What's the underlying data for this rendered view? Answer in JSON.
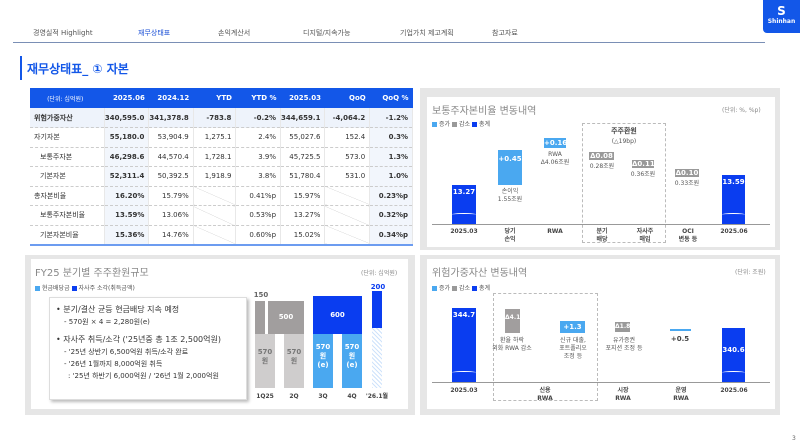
{
  "nav": [
    "경영실적 Highlight",
    "재무상태표",
    "손익계산서",
    "디지털/지속가능",
    "기업가치 제고계획",
    "참고자료"
  ],
  "logo_text": "Shinhan",
  "page_title": "재무상태표_ ① 자본",
  "table": {
    "unit": "(단위: 십억원)",
    "headers": [
      "2025.06",
      "2024.12",
      "YTD",
      "YTD %",
      "2025.03",
      "QoQ",
      "QoQ %"
    ],
    "rows": [
      {
        "label": "위험가중자산",
        "values": [
          "340,595.0",
          "341,378.8",
          "-783.8",
          "-0.2%",
          "344,659.1",
          "-4,064.2",
          "-1.2%"
        ]
      },
      {
        "label": "자기자본",
        "values": [
          "55,180.0",
          "53,904.9",
          "1,275.1",
          "2.4%",
          "55,027.6",
          "152.4",
          "0.3%"
        ]
      },
      {
        "label": "보통주자본",
        "values": [
          "46,298.6",
          "44,570.4",
          "1,728.1",
          "3.9%",
          "45,725.5",
          "573.0",
          "1.3%"
        ]
      },
      {
        "label": "기본자본",
        "values": [
          "52,311.4",
          "50,392.5",
          "1,918.9",
          "3.8%",
          "51,780.4",
          "531.0",
          "1.0%"
        ]
      },
      {
        "label": "총자본비율",
        "values": [
          "16.20%",
          "15.79%",
          "",
          "0.41%p",
          "15.97%",
          "",
          "0.23%p"
        ]
      },
      {
        "label": "보통주자본비율",
        "values": [
          "13.59%",
          "13.06%",
          "",
          "0.53%p",
          "13.27%",
          "",
          "0.32%p"
        ]
      },
      {
        "label": "기본자본비율",
        "values": [
          "15.36%",
          "14.76%",
          "",
          "0.60%p",
          "15.02%",
          "",
          "0.34%p"
        ]
      }
    ]
  },
  "cet1": {
    "title": "보통주자본비율 변동내역",
    "unit": "(단위: %, %p)",
    "legend": [
      "증가",
      "감소",
      "총계"
    ],
    "start": "13.27",
    "end": "13.59",
    "ni": "+0.45",
    "ni_note": "손이익",
    "ni_note2": "1.55조원",
    "rwa": "+0.16",
    "rwa_note": "RWA",
    "rwa_note2": "Δ4.06조원",
    "box_title": "주주환원",
    "box_sub": "(△19bp)",
    "div": "Δ0.08",
    "div_note": "0.28조원",
    "buy": "Δ0.11",
    "buy_note": "0.36조원",
    "oci": "Δ0.10",
    "oci_note": "0.33조원",
    "x": [
      [
        "2025.03"
      ],
      [
        "당기",
        "손익"
      ],
      [
        "RWA"
      ],
      [
        "분기",
        "배당"
      ],
      [
        "자사주",
        "매입"
      ],
      [
        "OCI",
        "변동 등"
      ],
      [
        "2025.06"
      ]
    ]
  },
  "sr": {
    "title": "FY25 분기별 주주환원규모",
    "unit": "(단위: 십억원)",
    "legend": [
      "현금배당금",
      "자사주 소각(취득금액)"
    ],
    "b1": "• 분기/결산 균등 현금배당 지속 예정",
    "b1s": "- 570원 × 4 = 2,280원(e)",
    "b2": "• 자사주 취득/소각 ('25년중 총 1조 2,500억원)",
    "b2s1": "- '25년 상반기 6,500억원 취득/소각 완료",
    "b2s2": "- '26년 1월까지 8,000억원 취득",
    "b2s3": ": '25년 하반기 6,000억원 / '26년 1월 2,000억원",
    "v150": "150",
    "v500": "500",
    "v600": "600",
    "v200": "200",
    "div": "570",
    "won": "원",
    "e": "(e)",
    "x": [
      "1Q25",
      "2Q",
      "3Q",
      "4Q",
      "'26.1월"
    ]
  },
  "rwa": {
    "title": "위험가중자산 변동내역",
    "unit": "(단위: 조원)",
    "legend": [
      "증가",
      "감소",
      "총계"
    ],
    "start": "344.7",
    "end": "340.6",
    "fx": "Δ4.1",
    "fx_note": [
      "환율 하락",
      "외화 RWA 감소"
    ],
    "loan": "+1.3",
    "loan_note": [
      "신규 대출,",
      "포트폴리오",
      "조정 등"
    ],
    "mkt": "Δ1.8",
    "mkt_note": [
      "유가증권",
      "포지션 조정 등"
    ],
    "op": "+0.5",
    "x": [
      [
        "2025.03"
      ],
      [
        "신용",
        "RWA"
      ],
      [
        "시장",
        "RWA"
      ],
      [
        "운영",
        "RWA"
      ],
      [
        "2025.06"
      ]
    ]
  },
  "colors": {
    "brand": "#1357e8",
    "total": "#0a3df0",
    "increase": "#4aa8f0",
    "decrease": "#999999"
  },
  "page_number": "3"
}
